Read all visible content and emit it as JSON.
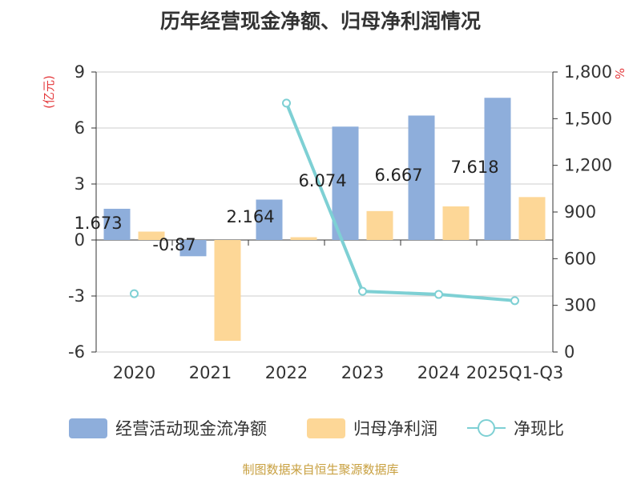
{
  "chart_data": {
    "type": "bar",
    "title": "历年经营现金净额、归母净利润情况",
    "categories": [
      "2020",
      "2021",
      "2022",
      "2023",
      "2024",
      "2025Q1-Q3"
    ],
    "left_axis": {
      "unit": "(亿元)",
      "ylim": [
        -6,
        9
      ],
      "ticks": [
        "9",
        "6",
        "3",
        "0",
        "-3",
        "-6"
      ]
    },
    "right_axis": {
      "unit": "%",
      "ylim": [
        0,
        1800
      ],
      "ticks": [
        "1,800",
        "1,500",
        "1,200",
        "900",
        "600",
        "300",
        "0"
      ]
    },
    "series": [
      {
        "name": "经营活动现金流净额",
        "kind": "bar",
        "axis": "left",
        "color": "#8eaedb",
        "values": [
          1.673,
          -0.87,
          2.164,
          6.074,
          6.667,
          7.618
        ],
        "labels": [
          "1.673",
          "-0.87",
          "2.164",
          "6.074",
          "6.667",
          "7.618"
        ]
      },
      {
        "name": "归母净利润",
        "kind": "bar",
        "axis": "left",
        "color": "#fdd797",
        "values": [
          0.45,
          -5.4,
          0.15,
          1.55,
          1.8,
          2.3
        ]
      },
      {
        "name": "净现比",
        "kind": "line",
        "axis": "right",
        "color": "#7ed0d4",
        "values": [
          375,
          null,
          1600,
          390,
          370,
          330
        ]
      }
    ],
    "grid": true,
    "legend_position": "bottom"
  },
  "footer": {
    "source": "制图数据来自恒生聚源数据库"
  }
}
